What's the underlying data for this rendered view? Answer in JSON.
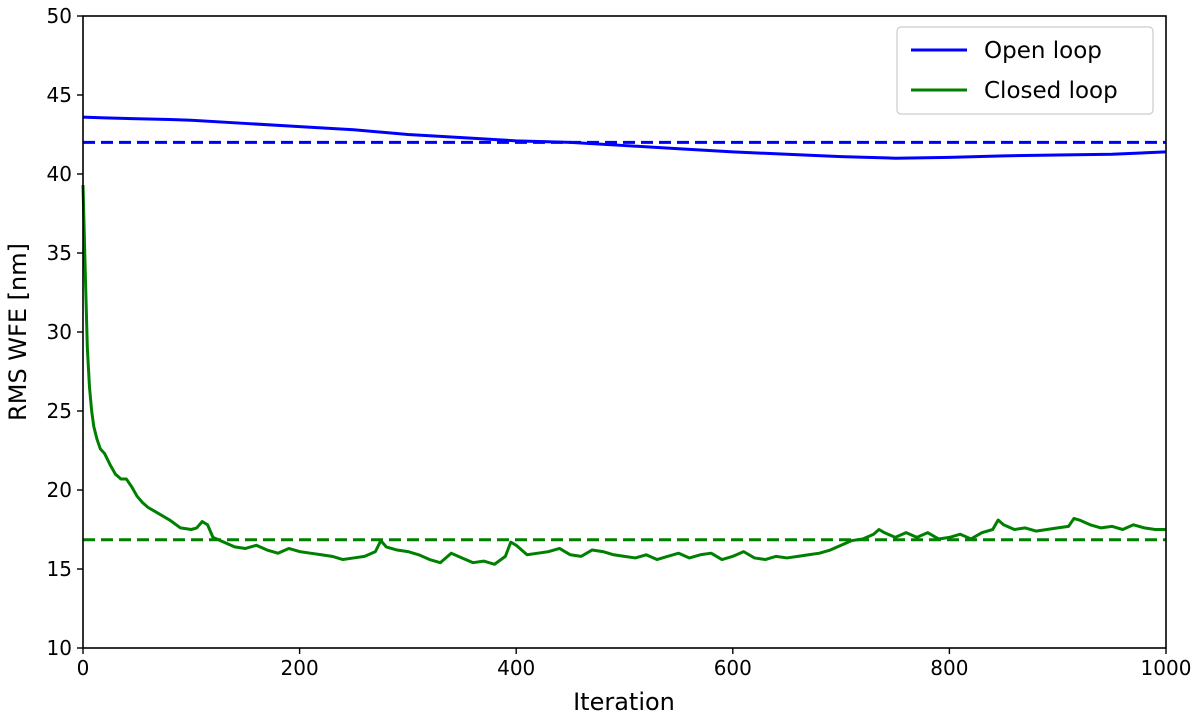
{
  "chart_data": {
    "type": "line",
    "title": "",
    "xlabel": "Iteration",
    "ylabel": "RMS WFE [nm]",
    "xlim": [
      0,
      1000
    ],
    "ylim": [
      10,
      50
    ],
    "xticks": [
      0,
      200,
      400,
      600,
      800,
      1000
    ],
    "yticks": [
      10,
      15,
      20,
      25,
      30,
      35,
      40,
      45,
      50
    ],
    "grid": false,
    "legend_placement": "top-right",
    "series": [
      {
        "name": "Open loop",
        "color": "#0000ff",
        "style": "solid",
        "points": [
          [
            0,
            43.6
          ],
          [
            20,
            43.55
          ],
          [
            50,
            43.5
          ],
          [
            80,
            43.45
          ],
          [
            100,
            43.4
          ],
          [
            150,
            43.2
          ],
          [
            200,
            43.0
          ],
          [
            250,
            42.8
          ],
          [
            300,
            42.5
          ],
          [
            350,
            42.3
          ],
          [
            400,
            42.1
          ],
          [
            450,
            42.0
          ],
          [
            500,
            41.8
          ],
          [
            550,
            41.6
          ],
          [
            600,
            41.4
          ],
          [
            650,
            41.25
          ],
          [
            700,
            41.1
          ],
          [
            750,
            41.0
          ],
          [
            800,
            41.05
          ],
          [
            850,
            41.15
          ],
          [
            900,
            41.2
          ],
          [
            950,
            41.25
          ],
          [
            1000,
            41.4
          ]
        ]
      },
      {
        "name": "Closed loop",
        "color": "#008000",
        "style": "solid",
        "points": [
          [
            0,
            39.3
          ],
          [
            2,
            34.0
          ],
          [
            4,
            29.0
          ],
          [
            6,
            26.5
          ],
          [
            8,
            25.0
          ],
          [
            10,
            24.0
          ],
          [
            13,
            23.2
          ],
          [
            16,
            22.6
          ],
          [
            20,
            22.3
          ],
          [
            25,
            21.6
          ],
          [
            30,
            21.0
          ],
          [
            35,
            20.7
          ],
          [
            40,
            20.7
          ],
          [
            45,
            20.2
          ],
          [
            50,
            19.6
          ],
          [
            55,
            19.2
          ],
          [
            60,
            18.9
          ],
          [
            70,
            18.5
          ],
          [
            80,
            18.1
          ],
          [
            90,
            17.6
          ],
          [
            100,
            17.5
          ],
          [
            105,
            17.6
          ],
          [
            110,
            18.0
          ],
          [
            115,
            17.8
          ],
          [
            120,
            17.0
          ],
          [
            130,
            16.7
          ],
          [
            140,
            16.4
          ],
          [
            150,
            16.3
          ],
          [
            160,
            16.5
          ],
          [
            170,
            16.2
          ],
          [
            180,
            16.0
          ],
          [
            190,
            16.3
          ],
          [
            200,
            16.1
          ],
          [
            210,
            16.0
          ],
          [
            220,
            15.9
          ],
          [
            230,
            15.8
          ],
          [
            240,
            15.6
          ],
          [
            250,
            15.7
          ],
          [
            260,
            15.8
          ],
          [
            270,
            16.1
          ],
          [
            275,
            16.8
          ],
          [
            280,
            16.4
          ],
          [
            290,
            16.2
          ],
          [
            300,
            16.1
          ],
          [
            310,
            15.9
          ],
          [
            320,
            15.6
          ],
          [
            330,
            15.4
          ],
          [
            340,
            16.0
          ],
          [
            350,
            15.7
          ],
          [
            360,
            15.4
          ],
          [
            370,
            15.5
          ],
          [
            380,
            15.3
          ],
          [
            390,
            15.8
          ],
          [
            395,
            16.7
          ],
          [
            400,
            16.5
          ],
          [
            410,
            15.9
          ],
          [
            420,
            16.0
          ],
          [
            430,
            16.1
          ],
          [
            440,
            16.3
          ],
          [
            450,
            15.9
          ],
          [
            460,
            15.8
          ],
          [
            470,
            16.2
          ],
          [
            480,
            16.1
          ],
          [
            490,
            15.9
          ],
          [
            500,
            15.8
          ],
          [
            510,
            15.7
          ],
          [
            520,
            15.9
          ],
          [
            530,
            15.6
          ],
          [
            540,
            15.8
          ],
          [
            550,
            16.0
          ],
          [
            560,
            15.7
          ],
          [
            570,
            15.9
          ],
          [
            580,
            16.0
          ],
          [
            590,
            15.6
          ],
          [
            600,
            15.8
          ],
          [
            610,
            16.1
          ],
          [
            620,
            15.7
          ],
          [
            630,
            15.6
          ],
          [
            640,
            15.8
          ],
          [
            650,
            15.7
          ],
          [
            660,
            15.8
          ],
          [
            670,
            15.9
          ],
          [
            680,
            16.0
          ],
          [
            690,
            16.2
          ],
          [
            700,
            16.5
          ],
          [
            710,
            16.8
          ],
          [
            720,
            16.9
          ],
          [
            730,
            17.2
          ],
          [
            735,
            17.5
          ],
          [
            740,
            17.3
          ],
          [
            750,
            17.0
          ],
          [
            760,
            17.3
          ],
          [
            770,
            17.0
          ],
          [
            780,
            17.3
          ],
          [
            790,
            16.9
          ],
          [
            800,
            17.0
          ],
          [
            810,
            17.2
          ],
          [
            820,
            16.9
          ],
          [
            830,
            17.3
          ],
          [
            840,
            17.5
          ],
          [
            845,
            18.1
          ],
          [
            850,
            17.8
          ],
          [
            860,
            17.5
          ],
          [
            870,
            17.6
          ],
          [
            880,
            17.4
          ],
          [
            890,
            17.5
          ],
          [
            900,
            17.6
          ],
          [
            910,
            17.7
          ],
          [
            915,
            18.2
          ],
          [
            920,
            18.1
          ],
          [
            930,
            17.8
          ],
          [
            940,
            17.6
          ],
          [
            950,
            17.7
          ],
          [
            960,
            17.5
          ],
          [
            970,
            17.8
          ],
          [
            980,
            17.6
          ],
          [
            990,
            17.5
          ],
          [
            1000,
            17.5
          ]
        ]
      },
      {
        "name": "",
        "color": "#0000ff",
        "style": "dashed",
        "points": [
          [
            0,
            42.0
          ],
          [
            1000,
            42.0
          ]
        ]
      },
      {
        "name": "",
        "color": "#008000",
        "style": "dashed",
        "points": [
          [
            0,
            16.85
          ],
          [
            1000,
            16.85
          ]
        ]
      }
    ]
  }
}
